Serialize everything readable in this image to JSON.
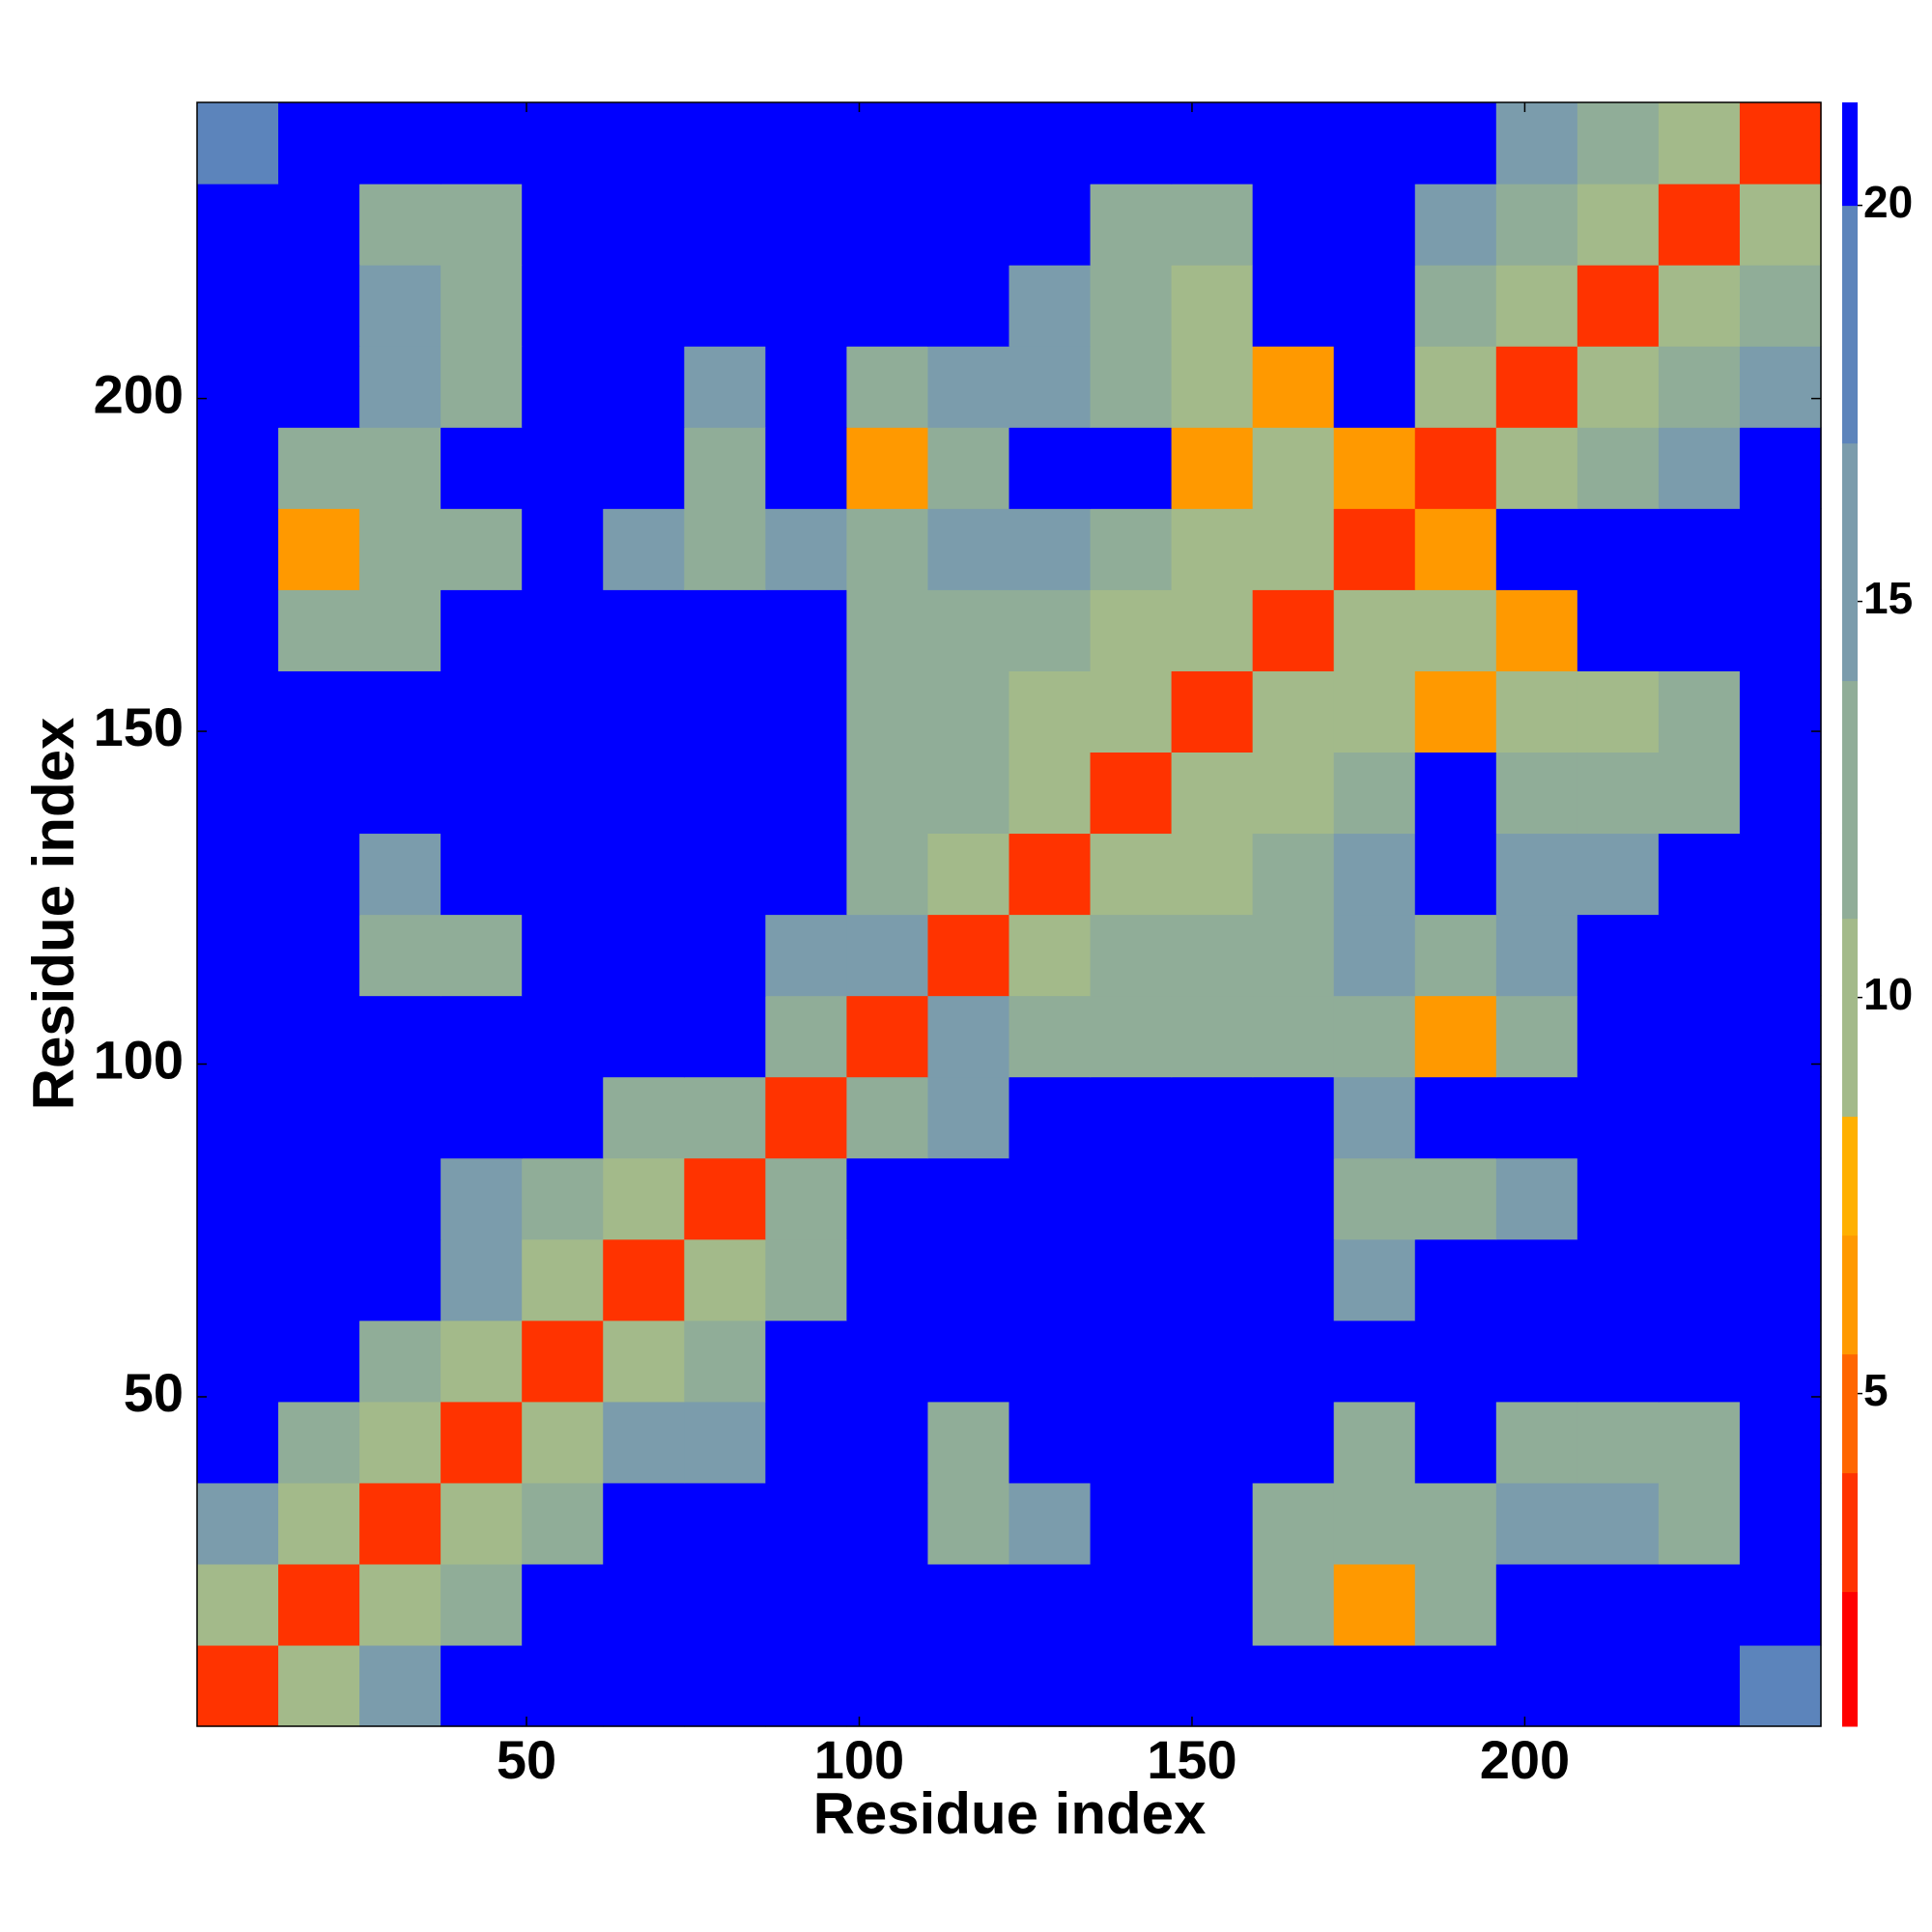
{
  "chart_data": {
    "type": "heatmap",
    "x_label": "Residue index",
    "y_label": "Residue index",
    "x": [
      6.6,
      18.8,
      31,
      43.2,
      55.4,
      67.6,
      79.8,
      92,
      104.2,
      116.4,
      128.6,
      140.8,
      153,
      165.2,
      177.4,
      189.6,
      201.8,
      214,
      226.2,
      238.4
    ],
    "y": [
      6.6,
      18.8,
      31,
      43.2,
      55.4,
      67.6,
      79.8,
      92,
      104.2,
      116.4,
      128.6,
      140.8,
      153,
      165.2,
      177.4,
      189.6,
      201.8,
      214,
      226.2,
      238.4
    ],
    "z": [
      [
        3,
        9,
        14,
        21,
        21,
        21,
        21,
        21,
        21,
        21,
        21,
        21,
        21,
        21,
        21,
        21,
        21,
        21,
        21,
        17
      ],
      [
        9,
        3,
        10,
        12,
        21,
        21,
        21,
        21,
        21,
        21,
        21,
        21,
        21,
        12,
        6,
        13,
        21,
        21,
        21,
        21
      ],
      [
        14,
        10,
        3,
        10,
        11,
        21,
        21,
        21,
        21,
        11,
        15,
        21,
        21,
        13,
        11,
        13,
        14,
        14,
        11,
        21
      ],
      [
        21,
        12,
        10,
        3,
        10,
        14,
        16,
        21,
        21,
        12,
        21,
        21,
        21,
        21,
        13,
        21,
        12,
        11,
        12,
        21
      ],
      [
        21,
        21,
        11,
        10,
        3,
        9,
        13,
        21,
        21,
        21,
        21,
        21,
        21,
        21,
        21,
        21,
        21,
        21,
        21,
        21
      ],
      [
        21,
        21,
        21,
        14,
        9,
        3,
        10,
        13,
        21,
        21,
        21,
        21,
        21,
        21,
        16,
        21,
        21,
        21,
        21,
        21
      ],
      [
        21,
        21,
        21,
        16,
        13,
        10,
        3,
        12,
        21,
        21,
        21,
        21,
        21,
        21,
        11,
        11,
        14,
        21,
        21,
        21
      ],
      [
        21,
        21,
        21,
        21,
        21,
        13,
        12,
        3,
        12,
        15,
        21,
        21,
        21,
        21,
        16,
        21,
        21,
        21,
        21,
        21
      ],
      [
        21,
        21,
        21,
        21,
        21,
        21,
        21,
        12,
        3,
        14,
        12,
        13,
        12,
        12,
        12,
        6,
        13,
        21,
        21,
        21
      ],
      [
        21,
        21,
        11,
        12,
        21,
        21,
        21,
        15,
        14,
        3,
        10,
        11,
        11,
        12,
        14,
        11,
        14,
        21,
        21,
        21
      ],
      [
        21,
        21,
        15,
        21,
        21,
        21,
        21,
        21,
        12,
        10,
        3,
        9,
        10,
        11,
        15,
        21,
        16,
        15,
        21,
        21
      ],
      [
        21,
        21,
        21,
        21,
        21,
        21,
        21,
        21,
        13,
        11,
        9,
        3,
        9,
        10,
        11,
        21,
        13,
        12,
        11,
        21
      ],
      [
        21,
        21,
        21,
        21,
        21,
        21,
        21,
        21,
        12,
        11,
        10,
        9,
        3,
        9,
        10,
        6,
        9,
        10,
        13,
        21
      ],
      [
        21,
        12,
        13,
        21,
        21,
        21,
        21,
        21,
        12,
        12,
        11,
        10,
        9,
        3,
        9,
        10,
        6,
        21,
        21,
        21
      ],
      [
        21,
        6,
        11,
        13,
        21,
        16,
        11,
        16,
        12,
        14,
        15,
        11,
        10,
        9,
        3,
        6,
        21,
        21,
        21,
        21
      ],
      [
        21,
        13,
        13,
        21,
        21,
        21,
        11,
        21,
        6,
        11,
        21,
        21,
        6,
        10,
        6,
        3,
        9,
        12,
        15,
        21
      ],
      [
        21,
        21,
        14,
        12,
        21,
        21,
        14,
        21,
        13,
        14,
        16,
        13,
        9,
        6,
        21,
        9,
        3,
        10,
        11,
        15
      ],
      [
        21,
        21,
        14,
        11,
        21,
        21,
        21,
        21,
        21,
        21,
        15,
        12,
        10,
        21,
        21,
        12,
        10,
        3,
        9,
        11
      ],
      [
        21,
        21,
        11,
        12,
        21,
        21,
        21,
        21,
        21,
        21,
        21,
        11,
        13,
        21,
        21,
        15,
        11,
        9,
        3,
        9
      ],
      [
        17,
        21,
        21,
        21,
        21,
        21,
        21,
        21,
        21,
        21,
        21,
        21,
        21,
        21,
        21,
        21,
        15,
        11,
        9,
        3
      ]
    ],
    "xlim": [
      0.5,
      244.5
    ],
    "ylim": [
      0.5,
      244.5
    ],
    "xticks": [
      50,
      100,
      150,
      200
    ],
    "yticks": [
      50,
      100,
      150,
      200
    ],
    "zlim": [
      0.8,
      21.3
    ],
    "color_bounds": [
      0.8,
      2.5,
      4,
      5.5,
      7,
      8.5,
      11,
      14,
      17,
      20,
      21.3
    ],
    "colors": [
      "#ff0000",
      "#ff3300",
      "#ff6600",
      "#ff9900",
      "#ffb000",
      "#a3ba8a",
      "#90ad98",
      "#7b9cac",
      "#5c84bb",
      "#0000ff"
    ],
    "colorbar_ticks": [
      5,
      10,
      15,
      20
    ]
  }
}
